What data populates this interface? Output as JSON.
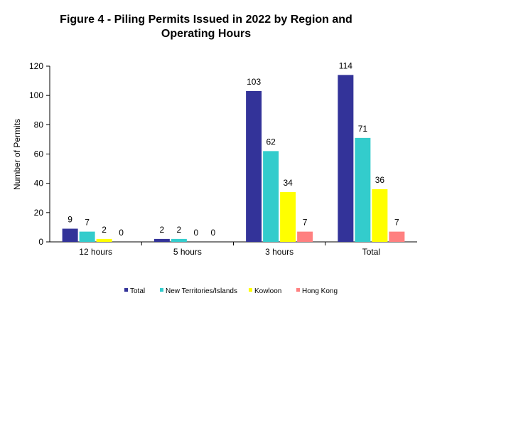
{
  "chart_data": {
    "type": "bar",
    "title_line1": "Figure 4 - Piling Permits Issued in 2022 by Region and",
    "title_line2": "Operating Hours",
    "xlabel": "",
    "ylabel": "Number of Permits",
    "ylim": [
      0,
      120
    ],
    "yticks": [
      "0",
      "20",
      "40",
      "60",
      "80",
      "100",
      "120"
    ],
    "categories": [
      "12 hours",
      "5 hours",
      "3 hours",
      "Total"
    ],
    "series": [
      {
        "name": "Total",
        "color": "#333399",
        "values": [
          9,
          2,
          103,
          114
        ]
      },
      {
        "name": "New Territories/Islands",
        "color": "#33CCCC",
        "values": [
          7,
          2,
          62,
          71
        ]
      },
      {
        "name": "Kowloon",
        "color": "#FFFF00",
        "values": [
          2,
          0,
          34,
          36
        ]
      },
      {
        "name": "Hong Kong",
        "color": "#FF8080",
        "values": [
          0,
          0,
          7,
          7
        ]
      }
    ],
    "legend_position": "bottom",
    "grid": false
  }
}
